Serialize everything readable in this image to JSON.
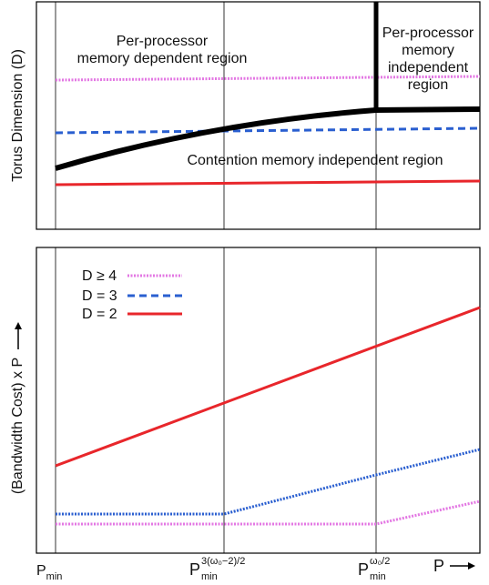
{
  "top_panel": {
    "y_label": "Torus Dimension (D)",
    "regions": [
      {
        "lines": [
          "Per-processor",
          "memory dependent region"
        ]
      },
      {
        "lines": [
          "Per-processor",
          "memory",
          "independent",
          "region"
        ]
      },
      {
        "lines": [
          "Contention memory independent region"
        ]
      }
    ]
  },
  "bottom_panel": {
    "y_label": "(Bandwidth Cost) x P",
    "legend": [
      {
        "label": "D ≥ 4"
      },
      {
        "label": "D = 3"
      },
      {
        "label": "D = 2"
      }
    ]
  },
  "x_labels": [
    {
      "base": "P",
      "sub": "min"
    },
    {
      "base": "P",
      "sup": "3(ω₀−2)/2",
      "sub": "min"
    },
    {
      "base": "P",
      "sup": "ω₀/2",
      "sub": "min"
    },
    {
      "base": "P"
    }
  ]
}
